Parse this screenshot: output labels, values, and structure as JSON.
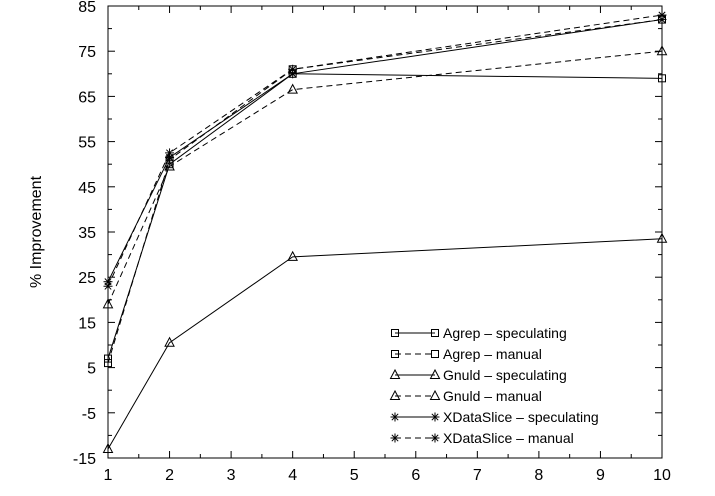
{
  "chart_data": {
    "type": "line",
    "title": "",
    "xlabel": "",
    "ylabel": "% Improvement",
    "x": [
      1,
      2,
      4,
      10
    ],
    "xticks": [
      1,
      2,
      3,
      4,
      5,
      6,
      7,
      8,
      9,
      10
    ],
    "yticks": [
      -15,
      -5,
      5,
      15,
      25,
      35,
      45,
      55,
      65,
      75,
      85
    ],
    "xlim": [
      1,
      10
    ],
    "ylim": [
      -15,
      85
    ],
    "grid": false,
    "legend_position": "bottom-right",
    "series": [
      {
        "name": "Agrep – speculating",
        "values": [
          7,
          50,
          70,
          69
        ],
        "dash": "solid",
        "marker": "square"
      },
      {
        "name": "Agrep – manual",
        "values": [
          6,
          51,
          71,
          82
        ],
        "dash": "dashed",
        "marker": "square"
      },
      {
        "name": "Gnuld – speculating",
        "values": [
          -13,
          10.5,
          29.5,
          33.5
        ],
        "dash": "solid",
        "marker": "triangle"
      },
      {
        "name": "Gnuld – manual",
        "values": [
          19,
          49.5,
          66.5,
          75
        ],
        "dash": "dashed",
        "marker": "triangle"
      },
      {
        "name": "XDataSlice – speculating",
        "values": [
          24,
          51.5,
          70,
          82
        ],
        "dash": "solid",
        "marker": "star"
      },
      {
        "name": "XDataSlice – manual",
        "values": [
          23,
          52.5,
          71,
          83
        ],
        "dash": "dashed",
        "marker": "star"
      }
    ],
    "colors": {
      "line": "#000000",
      "background": "#ffffff"
    }
  }
}
